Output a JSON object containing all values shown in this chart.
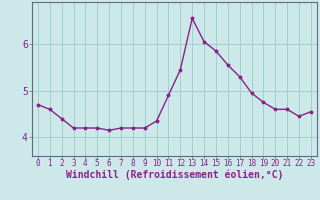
{
  "x": [
    0,
    1,
    2,
    3,
    4,
    5,
    6,
    7,
    8,
    9,
    10,
    11,
    12,
    13,
    14,
    15,
    16,
    17,
    18,
    19,
    20,
    21,
    22,
    23
  ],
  "y": [
    4.7,
    4.6,
    4.4,
    4.2,
    4.2,
    4.2,
    4.15,
    4.2,
    4.2,
    4.2,
    4.35,
    4.9,
    5.45,
    6.55,
    6.05,
    5.85,
    5.55,
    5.3,
    4.95,
    4.75,
    4.6,
    4.6,
    4.45,
    4.55
  ],
  "line_color": "#882288",
  "marker": "*",
  "background_color": "#cce8e8",
  "grid_color": "#99cccc",
  "axis_color": "#666688",
  "xlabel": "Windchill (Refroidissement éolien,°C)",
  "xlabel_color": "#882288",
  "yticks": [
    4,
    5,
    6
  ],
  "xticks": [
    0,
    1,
    2,
    3,
    4,
    5,
    6,
    7,
    8,
    9,
    10,
    11,
    12,
    13,
    14,
    15,
    16,
    17,
    18,
    19,
    20,
    21,
    22,
    23
  ],
  "ylim": [
    3.6,
    6.9
  ],
  "xlim": [
    -0.5,
    23.5
  ],
  "tick_color": "#882288",
  "tick_fontsize": 5.5,
  "xlabel_fontsize": 7.0,
  "line_width": 1.0,
  "marker_size": 2.5
}
